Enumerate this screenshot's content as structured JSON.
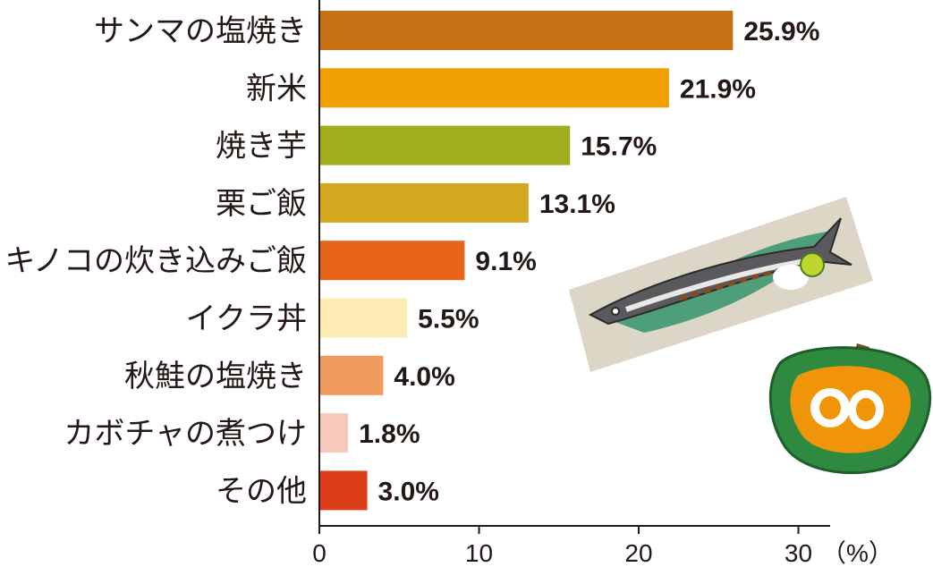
{
  "chart_data": {
    "type": "bar",
    "orientation": "horizontal",
    "categories": [
      "サンマの塩焼き",
      "新米",
      "焼き芋",
      "栗ご飯",
      "キノコの炊き込みご飯",
      "イクラ丼",
      "秋鮭の塩焼き",
      "カボチャの煮つけ",
      "その他"
    ],
    "values": [
      25.9,
      21.9,
      15.7,
      13.1,
      9.1,
      5.5,
      4.0,
      1.8,
      3.0
    ],
    "value_labels": [
      "25.9%",
      "21.9%",
      "15.7%",
      "13.1%",
      "9.1%",
      "5.5%",
      "4.0%",
      "1.8%",
      "3.0%"
    ],
    "colors": [
      "#C87014",
      "#F0A000",
      "#A0AE1E",
      "#D4A81E",
      "#E8641A",
      "#FDEBB4",
      "#F29B5E",
      "#F6C9BC",
      "#DD3E1A"
    ],
    "x_ticks": [
      "0",
      "10",
      "20",
      "30"
    ],
    "x_unit": "（%）",
    "xlim": [
      0,
      32
    ],
    "grid": false,
    "legend": "none"
  }
}
